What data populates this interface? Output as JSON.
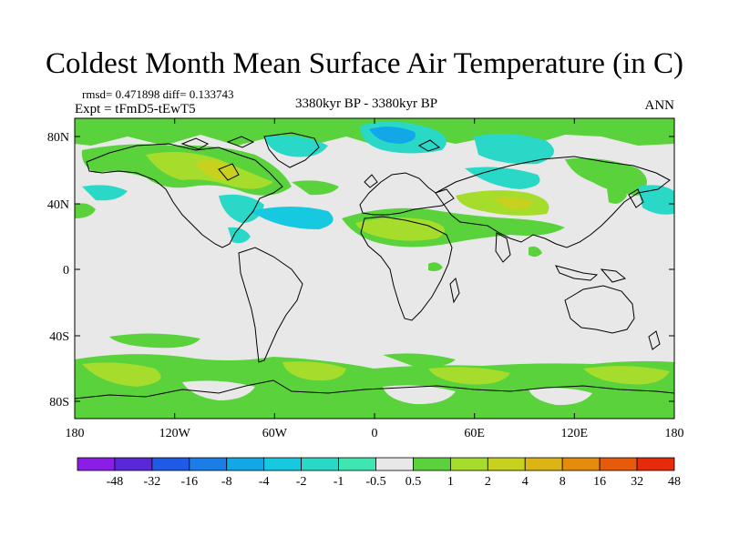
{
  "title": "Coldest Month Mean Surface Air Temperature (in C)",
  "stats": "rmsd= 0.471898 diff= 0.133743",
  "experiment": "Expt = tFmD5-tEwT5",
  "period": "3380kyr BP - 3380kyr BP",
  "season": "ANN",
  "axes": {
    "lat_ticks": [
      "80N",
      "40N",
      "0",
      "40S",
      "80S"
    ],
    "lon_ticks": [
      "180",
      "120W",
      "60W",
      "0",
      "60E",
      "120E",
      "180"
    ]
  },
  "colorbar": {
    "labels": [
      "-48",
      "-32",
      "-16",
      "-8",
      "-4",
      "-2",
      "-1",
      "-0.5",
      "0.5",
      "1",
      "2",
      "4",
      "8",
      "16",
      "32",
      "48"
    ],
    "colors": [
      "#8a1ee6",
      "#5a28d8",
      "#1f5ae6",
      "#1a7ee6",
      "#12a8e8",
      "#16c8e0",
      "#2ad8c8",
      "#3ee6b4",
      "#e8e8e8",
      "#5ad23c",
      "#a6dc2c",
      "#c8d21e",
      "#dcb414",
      "#e68c0c",
      "#e65a0a",
      "#e62a0a"
    ]
  },
  "anomaly_colors": {
    "neutral": "#e8e8e8",
    "pos1": "#5ad23c",
    "pos2": "#a6dc2c",
    "pos3": "#c8d21e",
    "neg1": "#3ee6b4",
    "neg2": "#2ad8c8",
    "neg3": "#16c8e0",
    "neg4": "#12a8e8"
  }
}
